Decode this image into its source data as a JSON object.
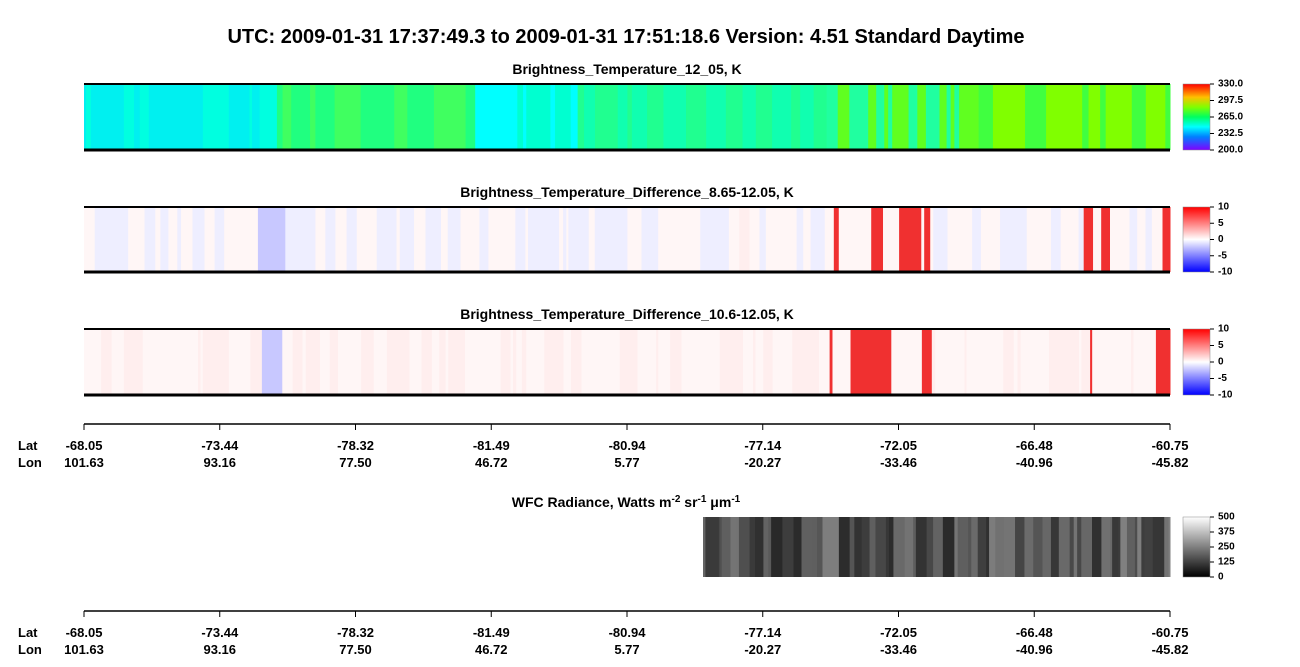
{
  "title": "UTC:  2009-01-31   17:37:49.3  to  2009-01-31   17:51:18.6    Version: 4.51  Standard Daytime",
  "panels": [
    {
      "title": "Brightness_Temperature_12_05, K",
      "colorbar_ticks": [
        {
          "value": 330,
          "label": "330.0"
        },
        {
          "value": 297.5,
          "label": "297.5"
        },
        {
          "value": 265,
          "label": "265.0"
        },
        {
          "value": 232.5,
          "label": "232.5"
        },
        {
          "value": 200,
          "label": "200.0"
        }
      ]
    },
    {
      "title": "Brightness_Temperature_Difference_8.65-12.05, K",
      "colorbar_ticks": [
        10,
        5,
        0,
        -5,
        -10
      ]
    },
    {
      "title": "Brightness_Temperature_Difference_10.6-12.05, K",
      "colorbar_ticks": [
        10,
        5,
        0,
        -5,
        -10
      ]
    },
    {
      "title_parts": [
        "WFC Radiance, Watts m",
        "-2",
        " sr",
        "-1",
        " μm",
        "-1"
      ],
      "colorbar_ticks": [
        500,
        375,
        250,
        125,
        0
      ]
    }
  ],
  "axis": {
    "lat_label": "Lat",
    "lon_label": "Lon",
    "lat": [
      -68.05,
      -73.44,
      -78.32,
      -81.49,
      -80.94,
      -77.14,
      -72.05,
      -66.48,
      -60.75
    ],
    "lon": [
      101.63,
      93.16,
      {
        "value": 77.5,
        "label": "77.50"
      },
      46.72,
      5.77,
      -20.27,
      -33.46,
      -40.96,
      -45.82
    ]
  }
}
